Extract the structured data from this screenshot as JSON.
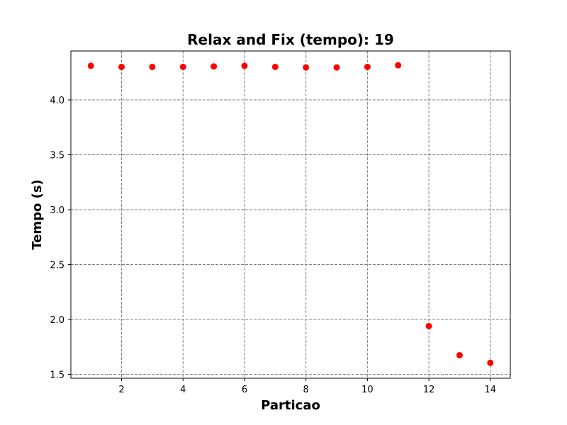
{
  "chart_data": {
    "type": "scatter",
    "title": "Relax and Fix (tempo): 19",
    "xlabel": "Particao",
    "ylabel": "Tempo (s)",
    "xlim": [
      0.35,
      14.65
    ],
    "ylim": [
      1.465,
      4.445
    ],
    "xticks": [
      2,
      4,
      6,
      8,
      10,
      12,
      14
    ],
    "xtick_labels": [
      "2",
      "4",
      "6",
      "8",
      "10",
      "12",
      "14"
    ],
    "yticks": [
      1.5,
      2.0,
      2.5,
      3.0,
      3.5,
      4.0
    ],
    "ytick_labels": [
      "1.5",
      "2.0",
      "2.5",
      "3.0",
      "3.5",
      "4.0"
    ],
    "grid": true,
    "marker_color": "#ff0000",
    "series": [
      {
        "x": [
          1,
          2,
          3,
          4,
          5,
          6,
          7,
          8,
          9,
          10,
          11,
          12,
          13,
          14
        ],
        "y": [
          4.31,
          4.3,
          4.3,
          4.3,
          4.305,
          4.31,
          4.3,
          4.295,
          4.295,
          4.3,
          4.315,
          1.94,
          1.675,
          1.605
        ]
      }
    ]
  }
}
